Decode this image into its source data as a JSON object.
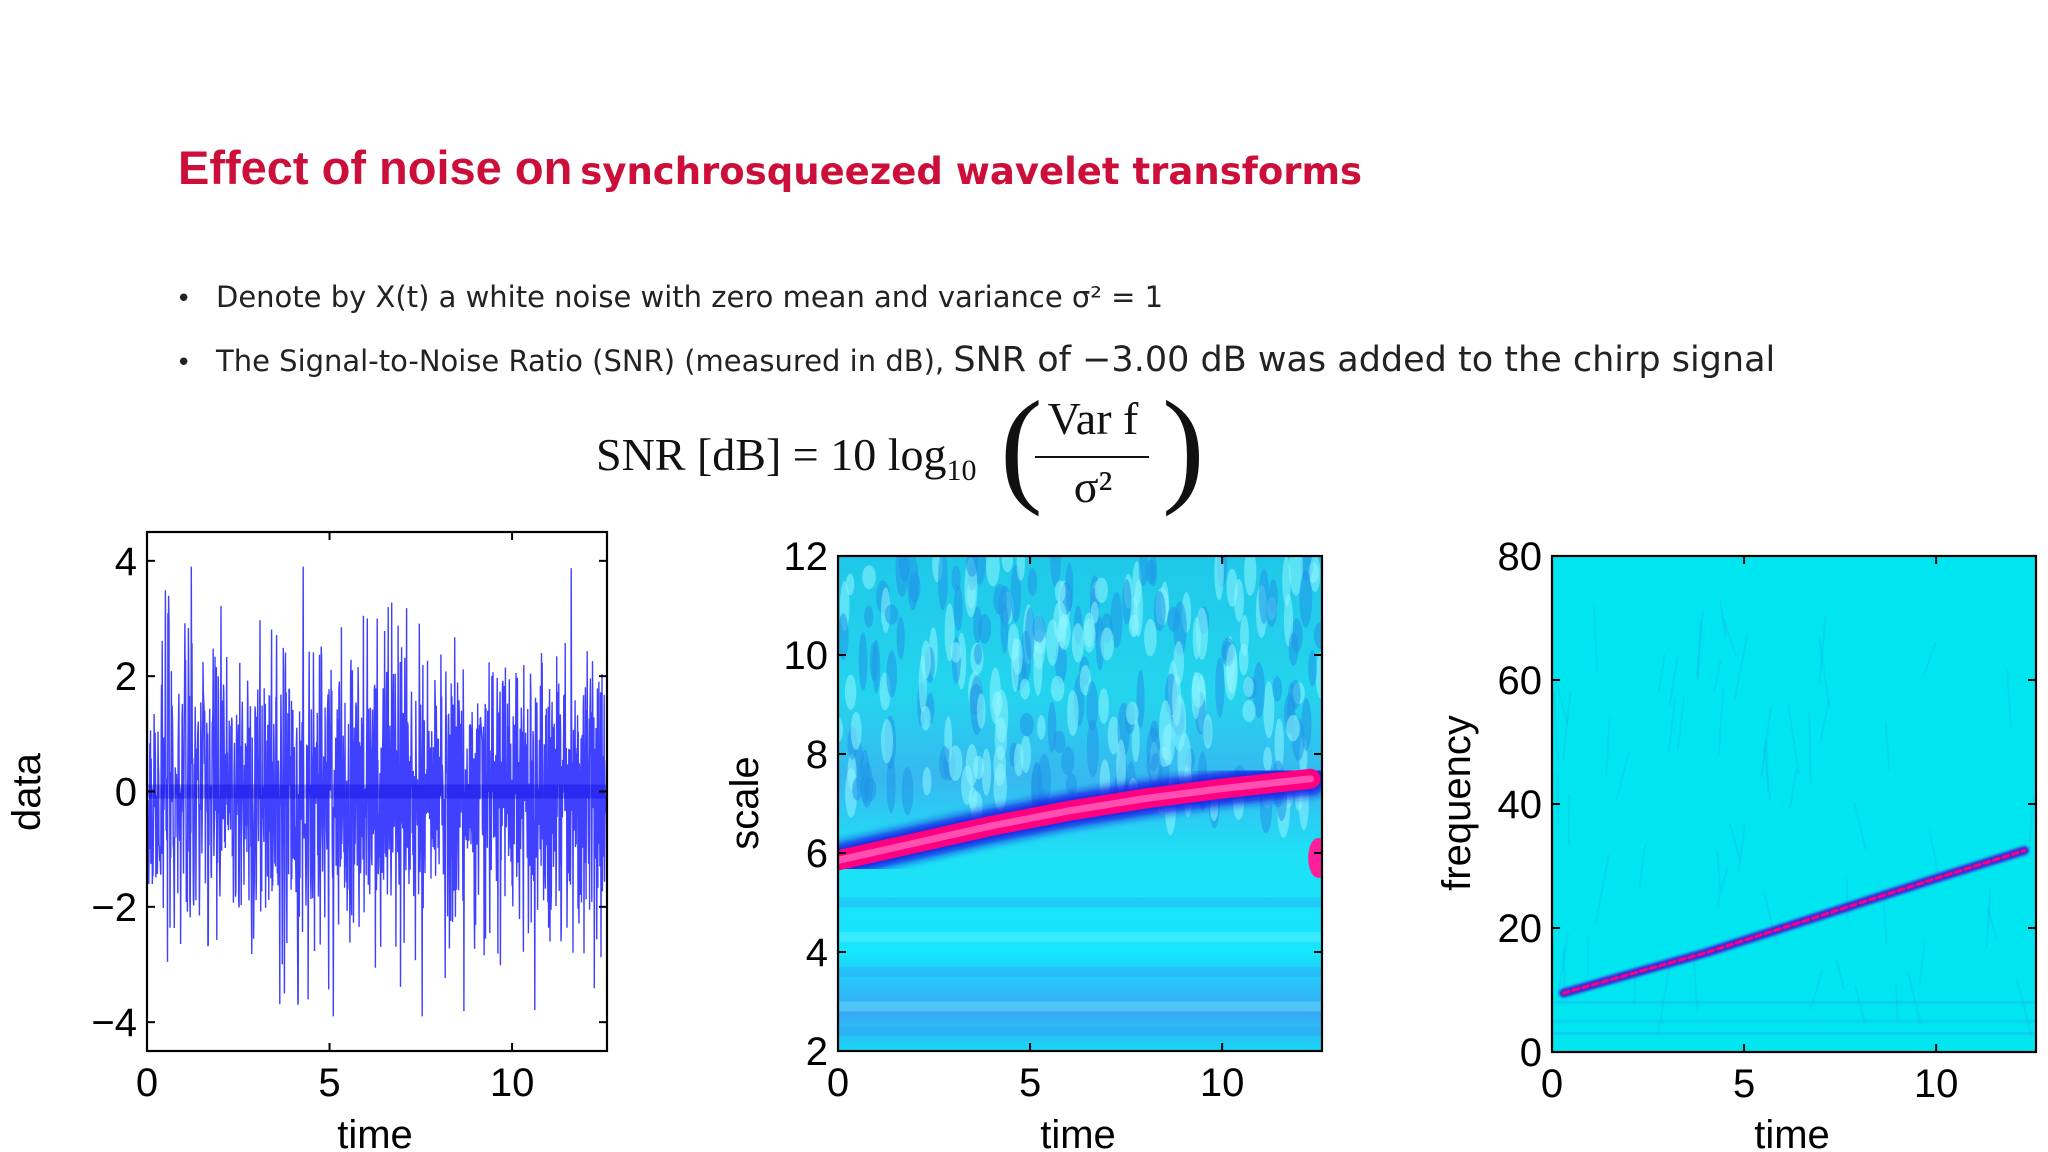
{
  "slide": {
    "title_part1": "Effect of noise on",
    "title_part2": "synchrosqueezed wavelet transforms",
    "bullets": {
      "b1": "Denote by X(t) a white noise with zero mean and variance σ² = 1",
      "b2_prefix": "The Signal-to-Noise Ratio (SNR) (measured in dB),",
      "b2_suffix": "SNR of −3.00 dB was added to the chirp signal"
    },
    "formula": {
      "lhs": "SNR [dB] = 10 log",
      "sub": "10",
      "numerator": "Var f",
      "denominator": "σ²"
    }
  },
  "colors": {
    "title": "#cc0f3a",
    "signal": "#0000ff",
    "background_map": "#00e6f0",
    "ridge": "#ff0080"
  },
  "chart_data": [
    {
      "type": "line",
      "title": "",
      "xlabel": "time",
      "ylabel": "data",
      "xlim": [
        0,
        12.6
      ],
      "ylim": [
        -4.5,
        4.5
      ],
      "xticks": [
        "0",
        "5",
        "10"
      ],
      "yticks": [
        "4",
        "2",
        "0",
        "−2",
        "−4"
      ],
      "grid": false,
      "series": [
        {
          "description": "noisy chirp signal, amplitude mostly within ±3, peaks near ±4",
          "color": "#0000ff"
        }
      ]
    },
    {
      "type": "heatmap",
      "title": "",
      "xlabel": "time",
      "ylabel": "scale",
      "xlim": [
        0,
        12.6
      ],
      "ylim": [
        2,
        12
      ],
      "xticks": [
        "0",
        "5",
        "10"
      ],
      "yticks": [
        "12",
        "10",
        "8",
        "6",
        "4",
        "2"
      ],
      "ridge": {
        "x": [
          0,
          2,
          4,
          6,
          8,
          10,
          12.3
        ],
        "y": [
          5.85,
          6.2,
          6.55,
          6.85,
          7.1,
          7.3,
          7.5
        ]
      }
    },
    {
      "type": "heatmap",
      "title": "",
      "xlabel": "time",
      "ylabel": "frequency",
      "xlim": [
        0,
        12.6
      ],
      "ylim": [
        0,
        80
      ],
      "xticks": [
        "0",
        "5",
        "10"
      ],
      "yticks": [
        "80",
        "60",
        "40",
        "20",
        "0"
      ],
      "ridge": {
        "x": [
          0.3,
          2,
          4,
          6,
          8,
          10,
          12.3
        ],
        "y": [
          9.5,
          12.5,
          16,
          20,
          24,
          28,
          32.5
        ]
      }
    }
  ]
}
